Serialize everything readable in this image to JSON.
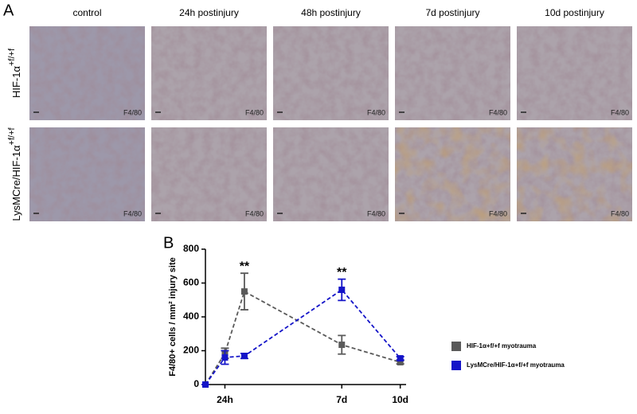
{
  "panel_a": {
    "label": "A",
    "columns": [
      "control",
      "24h postinjury",
      "48h postinjury",
      "7d postinjury",
      "10d postinjury"
    ],
    "rows": [
      {
        "label": "HIF-1α",
        "superscript": "+f/+f",
        "stain": [
          "F4/80",
          "F4/80",
          "F4/80",
          "F4/80",
          "F4/80"
        ]
      },
      {
        "label": "LysMCre/HIF-1α",
        "superscript": "+f/+f",
        "stain": [
          "F4/80",
          "F4/80",
          "F4/80",
          "F4/80",
          "F4/80"
        ]
      }
    ]
  },
  "panel_b": {
    "label": "B"
  },
  "chart_data": {
    "type": "line",
    "y_label": "F4/80+ cells / mm² injury site",
    "x": [
      0,
      1,
      2,
      7,
      10
    ],
    "xlim": [
      0,
      10.3
    ],
    "xticks": [
      {
        "value": 1,
        "label": "24h"
      },
      {
        "value": 7,
        "label": "7d"
      },
      {
        "value": 10,
        "label": "10d"
      }
    ],
    "ylim": [
      0,
      800
    ],
    "yticks": [
      0,
      200,
      400,
      600,
      800
    ],
    "series": [
      {
        "name": "HIF-1α+f/+f myotrauma",
        "color": "#5a5a5a",
        "values": [
          0,
          185,
          550,
          235,
          132
        ],
        "errors": [
          0,
          30,
          108,
          55,
          10
        ]
      },
      {
        "name": "LysMCre/HIF-1α+f/+f myotrauma",
        "color": "#1414c8",
        "values": [
          0,
          160,
          169,
          560,
          155
        ],
        "errors": [
          0,
          40,
          15,
          63,
          10
        ]
      }
    ],
    "annotations": [
      {
        "text": "**",
        "x": 2
      },
      {
        "text": "**",
        "x": 7
      }
    ]
  }
}
